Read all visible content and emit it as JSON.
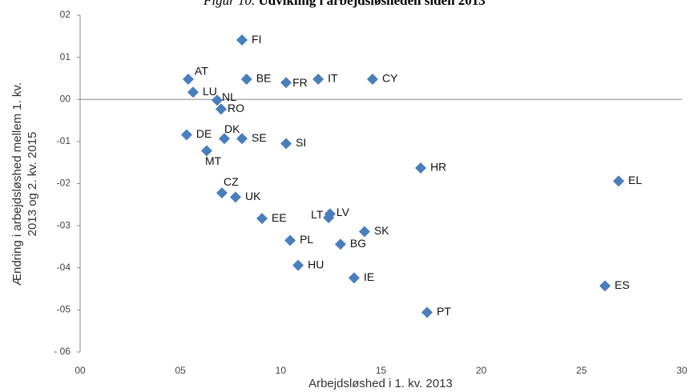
{
  "chart_data": {
    "type": "scatter",
    "title": [
      "Figur 10.",
      "Udvikling i arbejdsløsheden siden 2013"
    ],
    "xlabel": "Arbejdsløshed i 1. kv. 2013",
    "ylabel": [
      "Ændring i arbejdsløshed mellem 1. kv.",
      "2013 og 2. kv. 2015"
    ],
    "color": "#4a7ebb",
    "labels": [
      "FI",
      "AT",
      "BE",
      "FR",
      "IT",
      "CY",
      "LU",
      "NL",
      "RO",
      "DE",
      "DK",
      "SE",
      "SI",
      "MT",
      "HR",
      "EL",
      "CZ",
      "UK",
      "EE",
      "LT",
      "LV",
      "SK",
      "PL",
      "BG",
      "HU",
      "IE",
      "ES",
      "PT"
    ],
    "x": [
      8.07,
      5.39,
      8.3,
      10.27,
      11.87,
      14.58,
      5.63,
      6.83,
      7.03,
      5.31,
      7.19,
      8.07,
      10.27,
      6.31,
      16.98,
      26.85,
      7.07,
      7.75,
      9.07,
      12.39,
      12.46,
      14.18,
      10.47,
      12.98,
      10.87,
      13.66,
      26.17,
      17.3
    ],
    "values": [
      1.41,
      0.48,
      0.48,
      0.4,
      0.48,
      0.48,
      0.17,
      -0.02,
      -0.23,
      -0.84,
      -0.93,
      -0.93,
      -1.05,
      -1.22,
      -1.63,
      -1.94,
      -2.22,
      -2.32,
      -2.83,
      -2.81,
      -2.72,
      -3.14,
      -3.35,
      -3.44,
      -3.94,
      -4.24,
      -4.43,
      -5.06
    ],
    "xlim": [
      0,
      30
    ],
    "xticks": [
      {
        "value": 0,
        "label": "00"
      },
      {
        "value": 5,
        "label": "05"
      },
      10,
      15,
      20,
      25,
      30
    ],
    "ylim": [
      -6,
      2
    ],
    "yticks": [
      {
        "value": 2,
        "label": "02"
      },
      {
        "value": 1,
        "label": "01"
      },
      {
        "value": 0,
        "label": "00"
      },
      {
        "value": -1,
        "label": "-01"
      },
      {
        "value": -2,
        "label": "-02"
      },
      {
        "value": -3,
        "label": "-03"
      },
      {
        "value": -4,
        "label": "-04"
      },
      {
        "value": -5,
        "label": "-05"
      },
      {
        "value": -6,
        "label": "- 06"
      }
    ]
  }
}
